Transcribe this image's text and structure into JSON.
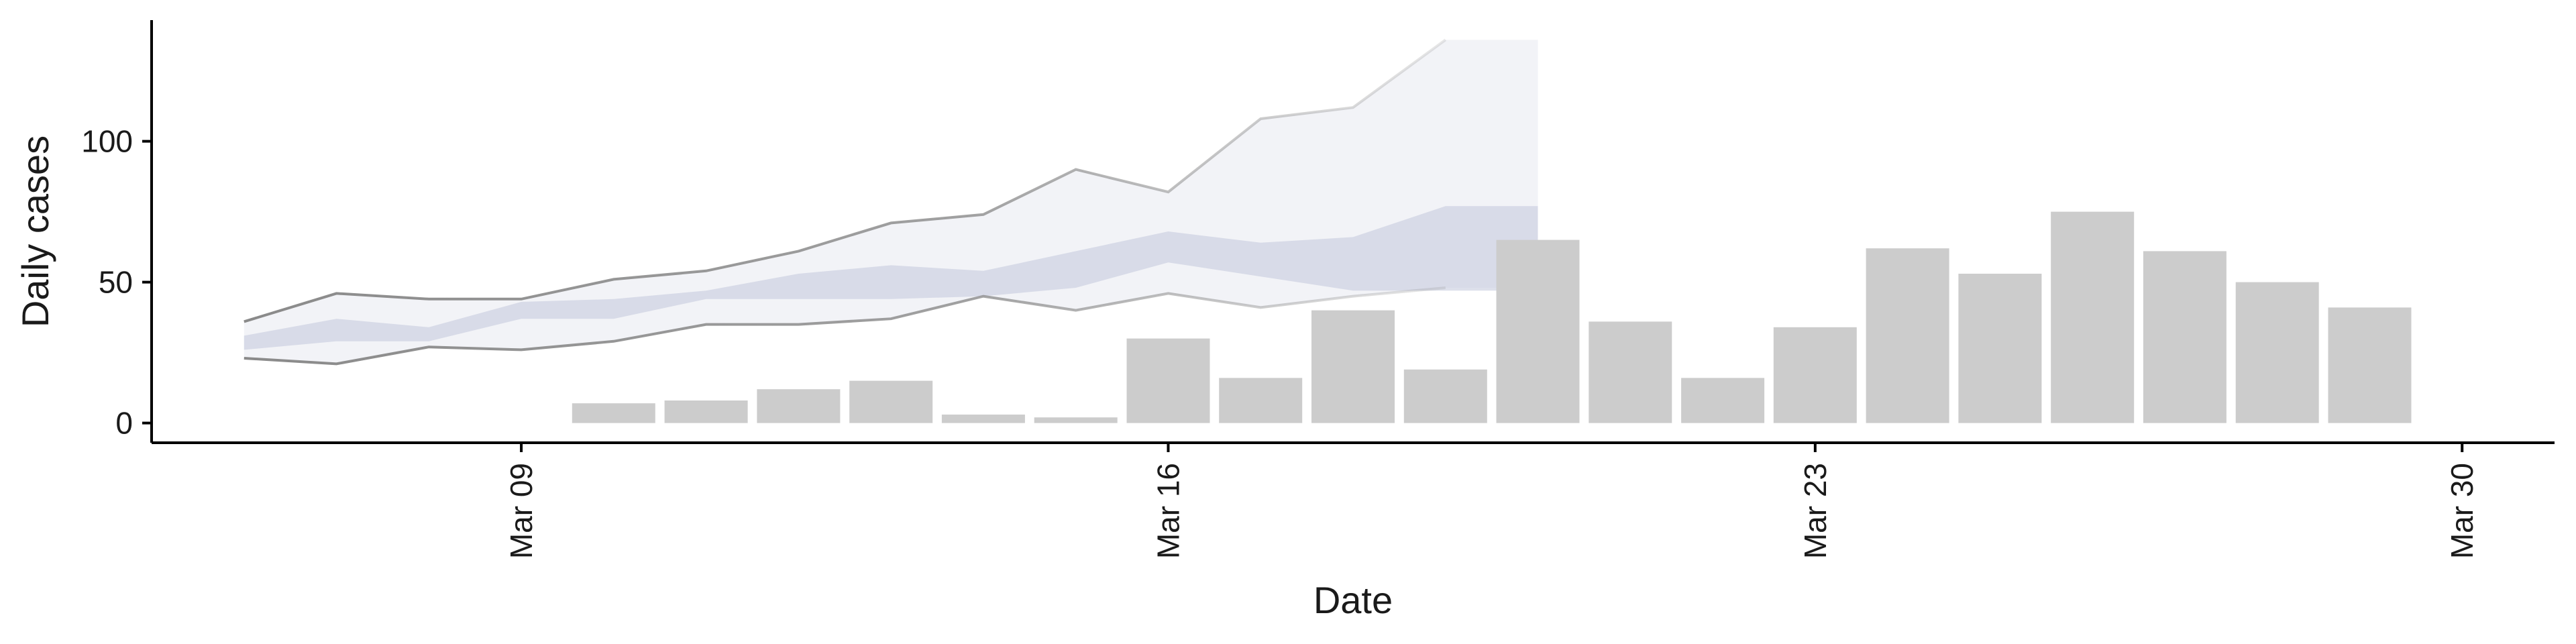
{
  "chart_data": {
    "type": "bar",
    "xlabel": "Date",
    "ylabel": "Daily cases",
    "x_ticks": [
      "Mar 09",
      "Mar 16",
      "Mar 23",
      "Mar 30"
    ],
    "y_ticks": [
      0,
      50,
      100
    ],
    "ylim": [
      -7,
      143
    ],
    "xlim": [
      "2020-03-05",
      "2020-03-31"
    ],
    "grid": false,
    "legend": "none",
    "colors": {
      "bars": "#cccccc",
      "band_outer_fill": "#e8eaf1",
      "band_inner_fill": "#c6cbdd",
      "band_edge_line": "#8a8a8a",
      "axis": "#000000"
    },
    "bars": {
      "dates": [
        "2020-03-10",
        "2020-03-11",
        "2020-03-12",
        "2020-03-13",
        "2020-03-14",
        "2020-03-15",
        "2020-03-16",
        "2020-03-17",
        "2020-03-18",
        "2020-03-19",
        "2020-03-20",
        "2020-03-21",
        "2020-03-22",
        "2020-03-23",
        "2020-03-24",
        "2020-03-25",
        "2020-03-26",
        "2020-03-27",
        "2020-03-28",
        "2020-03-29"
      ],
      "values": [
        7,
        8,
        12,
        15,
        3,
        2,
        30,
        16,
        40,
        19,
        65,
        36,
        16,
        34,
        62,
        53,
        75,
        61,
        50,
        41
      ]
    },
    "projection_bands": {
      "dates": [
        "2020-03-06",
        "2020-03-07",
        "2020-03-08",
        "2020-03-09",
        "2020-03-10",
        "2020-03-11",
        "2020-03-12",
        "2020-03-13",
        "2020-03-14",
        "2020-03-15",
        "2020-03-16",
        "2020-03-17",
        "2020-03-18",
        "2020-03-19",
        "2020-03-20"
      ],
      "outer_upper": [
        36,
        46,
        44,
        44,
        51,
        54,
        61,
        71,
        74,
        90,
        82,
        108,
        112,
        136,
        136
      ],
      "outer_lower": [
        23,
        21,
        27,
        26,
        29,
        35,
        35,
        37,
        45,
        40,
        46,
        41,
        45,
        48,
        48
      ],
      "inner_upper": [
        31,
        37,
        34,
        43,
        44,
        47,
        53,
        56,
        54,
        61,
        68,
        64,
        66,
        77,
        77
      ],
      "inner_lower": [
        26,
        29,
        29,
        37,
        37,
        44,
        44,
        44,
        45,
        48,
        57,
        52,
        47,
        47,
        47
      ],
      "line_end_date": "2020-03-19"
    }
  }
}
